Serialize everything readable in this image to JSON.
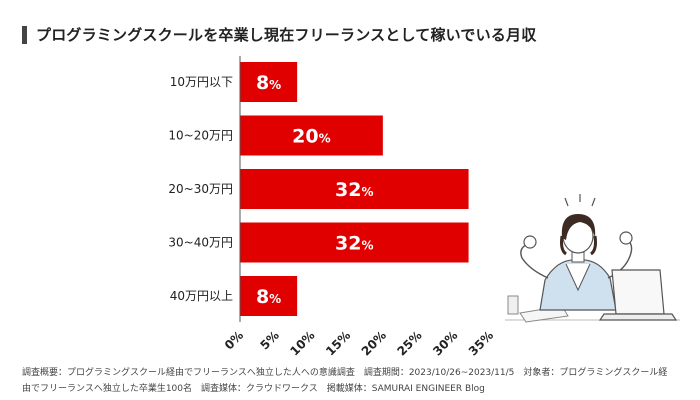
{
  "title": "プログラミングスクールを卒業し現在フリーランスとして稼いでいる月収",
  "colors": {
    "bar": "#e00000",
    "axis": "#555555",
    "title_mark": "#444444"
  },
  "chart_data": {
    "type": "bar",
    "orientation": "horizontal",
    "categories": [
      "10万円以下",
      "10~20万円",
      "20~30万円",
      "30~40万円",
      "40万円以上"
    ],
    "values": [
      8,
      20,
      32,
      32,
      8
    ],
    "data_labels": [
      "8",
      "20",
      "32",
      "32",
      "8"
    ],
    "value_unit": "%",
    "xlim": [
      0,
      35
    ],
    "xticks": [
      "0%",
      "5%",
      "10%",
      "15%",
      "20%",
      "25%",
      "30%",
      "35%"
    ],
    "grid": false
  },
  "footer": {
    "line1": "調査概要：プログラミングスクール経由でフリーランスへ独立した人への意識調査　調査期間：2023/10/26~2023/11/5　対象者：プログラミングスクール経",
    "line2": "由でフリーランスへ独立した卒業生100名　調査媒体：クラウドワークス　掲載媒体：SAMURAI ENGINEER Blog"
  },
  "illustration": {
    "icon": "person-celebrating-at-laptop-illustration"
  }
}
